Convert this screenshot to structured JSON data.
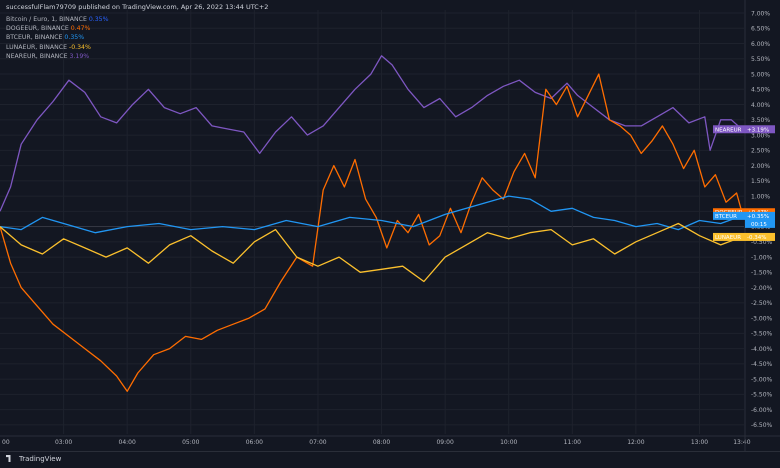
{
  "header": {
    "text": "successfulFlam79709 published on TradingView.com, Apr 26, 2022 13:44 UTC+2"
  },
  "legend": {
    "main": {
      "name": "Bitcoin / Euro, 1, BINANCE",
      "change": "0.35%",
      "color": "#2962ff"
    },
    "items": [
      {
        "name": "DOGEEUR, BINANCE",
        "change": "0.47%",
        "color": "#ff6d00"
      },
      {
        "name": "BTCEUR, BINANCE",
        "change": "0.35%",
        "color": "#2196f3"
      },
      {
        "name": "LUNAEUR, BINANCE",
        "change": "-0.34%",
        "color": "#fbc02d"
      },
      {
        "name": "NEAREUR, BINANCE",
        "change": "3.19%",
        "color": "#7e57c2"
      }
    ]
  },
  "footer": {
    "logo": "TradingView"
  },
  "chart_data": {
    "type": "line",
    "yunit": "%",
    "x_ticks": [
      "00",
      "03:00",
      "04:00",
      "05:00",
      "06:00",
      "07:00",
      "08:00",
      "09:00",
      "10:00",
      "11:00",
      "12:00",
      "13:00",
      "13:40"
    ],
    "y_ticks": [
      "7.00%",
      "6.50%",
      "6.00%",
      "5.50%",
      "5.00%",
      "4.50%",
      "4.00%",
      "3.50%",
      "3.00%",
      "2.50%",
      "2.00%",
      "1.50%",
      "1.00%",
      "0.50%",
      "0.00%",
      "-0.50%",
      "-1.00%",
      "-1.50%",
      "-2.00%",
      "-2.50%",
      "-3.00%",
      "-3.50%",
      "-4.00%",
      "-4.50%",
      "-5.00%",
      "-5.50%",
      "-6.00%",
      "-6.50%"
    ],
    "ylim": [
      -6.8,
      7.1
    ],
    "x_range": [
      "02:00",
      "13:42"
    ],
    "grid": true,
    "series": [
      {
        "name": "NEAREUR",
        "color": "#7e57c2",
        "badge": "NEAREUR",
        "badge_value": "+3.19%",
        "x": [
          "02:00",
          "02:10",
          "02:20",
          "02:35",
          "02:50",
          "03:05",
          "03:20",
          "03:35",
          "03:50",
          "04:05",
          "04:20",
          "04:35",
          "04:50",
          "05:05",
          "05:20",
          "05:35",
          "05:50",
          "06:05",
          "06:20",
          "06:35",
          "06:50",
          "07:05",
          "07:20",
          "07:35",
          "07:50",
          "08:00",
          "08:10",
          "08:25",
          "08:40",
          "08:55",
          "09:10",
          "09:25",
          "09:40",
          "09:55",
          "10:10",
          "10:25",
          "10:40",
          "10:55",
          "11:05",
          "11:20",
          "11:35",
          "11:50",
          "12:05",
          "12:20",
          "12:35",
          "12:50",
          "13:05",
          "13:10",
          "13:20",
          "13:30",
          "13:40"
        ],
        "values": [
          0.5,
          1.3,
          2.7,
          3.5,
          4.1,
          4.8,
          4.4,
          3.6,
          3.4,
          4.0,
          4.5,
          3.9,
          3.7,
          3.9,
          3.3,
          3.2,
          3.1,
          2.4,
          3.1,
          3.6,
          3.0,
          3.3,
          3.9,
          4.5,
          5.0,
          5.6,
          5.3,
          4.5,
          3.9,
          4.2,
          3.6,
          3.9,
          4.3,
          4.6,
          4.8,
          4.4,
          4.2,
          4.7,
          4.3,
          3.9,
          3.5,
          3.3,
          3.3,
          3.6,
          3.9,
          3.4,
          3.6,
          2.5,
          3.5,
          3.5,
          3.19
        ]
      },
      {
        "name": "DOGEEUR",
        "color": "#ff6d00",
        "badge": "DOGEEUR",
        "badge_value": "+0.47%",
        "x": [
          "02:00",
          "02:10",
          "02:20",
          "02:35",
          "02:50",
          "03:05",
          "03:20",
          "03:35",
          "03:50",
          "04:00",
          "04:10",
          "04:25",
          "04:40",
          "04:55",
          "05:10",
          "05:25",
          "05:40",
          "05:55",
          "06:10",
          "06:25",
          "06:40",
          "06:55",
          "07:05",
          "07:15",
          "07:25",
          "07:35",
          "07:45",
          "07:55",
          "08:05",
          "08:15",
          "08:25",
          "08:35",
          "08:45",
          "08:55",
          "09:05",
          "09:15",
          "09:25",
          "09:35",
          "09:45",
          "09:55",
          "10:05",
          "10:15",
          "10:25",
          "10:35",
          "10:45",
          "10:55",
          "11:05",
          "11:15",
          "11:25",
          "11:35",
          "11:45",
          "11:55",
          "12:05",
          "12:15",
          "12:25",
          "12:35",
          "12:45",
          "12:55",
          "13:05",
          "13:15",
          "13:25",
          "13:35",
          "13:40"
        ],
        "values": [
          0.0,
          -1.2,
          -2.0,
          -2.6,
          -3.2,
          -3.6,
          -4.0,
          -4.4,
          -4.9,
          -5.4,
          -4.8,
          -4.2,
          -4.0,
          -3.6,
          -3.7,
          -3.4,
          -3.2,
          -3.0,
          -2.7,
          -1.8,
          -1.0,
          -1.3,
          1.2,
          2.0,
          1.3,
          2.2,
          0.9,
          0.3,
          -0.7,
          0.2,
          -0.2,
          0.4,
          -0.6,
          -0.3,
          0.6,
          -0.2,
          0.8,
          1.6,
          1.2,
          0.9,
          1.8,
          2.4,
          1.6,
          4.5,
          4.0,
          4.6,
          3.6,
          4.3,
          5.0,
          3.5,
          3.3,
          3.0,
          2.4,
          2.8,
          3.3,
          2.7,
          1.9,
          2.5,
          1.3,
          1.7,
          0.8,
          1.1,
          0.47
        ]
      },
      {
        "name": "BTCEUR",
        "color": "#2196f3",
        "badge": "BTCEUR",
        "badge_value": "+0.35%",
        "badge_sub": "00:15",
        "x": [
          "02:00",
          "02:20",
          "02:40",
          "03:00",
          "03:30",
          "04:00",
          "04:30",
          "05:00",
          "05:30",
          "06:00",
          "06:30",
          "07:00",
          "07:30",
          "08:00",
          "08:30",
          "09:00",
          "09:30",
          "10:00",
          "10:20",
          "10:40",
          "11:00",
          "11:20",
          "11:40",
          "12:00",
          "12:20",
          "12:40",
          "13:00",
          "13:20",
          "13:40"
        ],
        "values": [
          0.0,
          -0.1,
          0.3,
          0.1,
          -0.2,
          0.0,
          0.1,
          -0.1,
          0.0,
          -0.1,
          0.2,
          0.0,
          0.3,
          0.2,
          0.0,
          0.4,
          0.7,
          1.0,
          0.9,
          0.5,
          0.6,
          0.3,
          0.2,
          0.0,
          0.1,
          -0.1,
          0.2,
          0.1,
          0.35
        ]
      },
      {
        "name": "LUNAEUR",
        "color": "#fbc02d",
        "badge": "LUNAEUR",
        "badge_value": "-0.34%",
        "x": [
          "02:00",
          "02:20",
          "02:40",
          "03:00",
          "03:20",
          "03:40",
          "04:00",
          "04:20",
          "04:40",
          "05:00",
          "05:20",
          "05:40",
          "06:00",
          "06:20",
          "06:40",
          "07:00",
          "07:20",
          "07:40",
          "08:00",
          "08:20",
          "08:40",
          "09:00",
          "09:20",
          "09:40",
          "10:00",
          "10:20",
          "10:40",
          "11:00",
          "11:20",
          "11:40",
          "12:00",
          "12:20",
          "12:40",
          "13:00",
          "13:20",
          "13:40"
        ],
        "values": [
          0.0,
          -0.6,
          -0.9,
          -0.4,
          -0.7,
          -1.0,
          -0.7,
          -1.2,
          -0.6,
          -0.3,
          -0.8,
          -1.2,
          -0.5,
          -0.1,
          -1.0,
          -1.3,
          -1.0,
          -1.5,
          -1.4,
          -1.3,
          -1.8,
          -1.0,
          -0.6,
          -0.2,
          -0.4,
          -0.2,
          -0.1,
          -0.6,
          -0.4,
          -0.9,
          -0.5,
          -0.2,
          0.1,
          -0.3,
          -0.6,
          -0.34
        ]
      }
    ]
  }
}
